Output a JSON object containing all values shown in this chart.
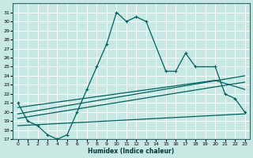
{
  "xlabel": "Humidex (Indice chaleur)",
  "bg_color": "#c8e8e4",
  "grid_color": "#ffffff",
  "line_color": "#006060",
  "xlim": [
    -0.5,
    23.5
  ],
  "ylim": [
    17,
    32
  ],
  "xticks": [
    0,
    1,
    2,
    3,
    4,
    5,
    6,
    7,
    8,
    9,
    10,
    11,
    12,
    13,
    14,
    15,
    16,
    17,
    18,
    19,
    20,
    21,
    22,
    23
  ],
  "yticks": [
    17,
    18,
    19,
    20,
    21,
    22,
    23,
    24,
    25,
    26,
    27,
    28,
    29,
    30,
    31
  ],
  "line1_x": [
    0,
    1,
    2,
    3,
    4,
    5,
    6,
    7,
    8,
    9,
    10,
    11,
    12,
    13,
    15,
    16,
    17,
    18,
    20,
    21,
    22,
    23
  ],
  "line1_y": [
    21,
    19,
    18.5,
    17.5,
    17,
    17.5,
    20,
    22.5,
    25,
    27.5,
    31,
    30,
    30.5,
    30,
    24.5,
    24.5,
    26.5,
    25,
    25,
    22,
    21.5,
    20
  ],
  "line2_x": [
    0,
    23
  ],
  "line2_y": [
    19.8,
    24.0
  ],
  "line3_x": [
    0,
    23
  ],
  "line3_y": [
    19.3,
    23.3
  ],
  "line4_x": [
    0,
    23
  ],
  "line4_y": [
    18.5,
    19.8
  ],
  "line5_x": [
    0,
    20,
    23
  ],
  "line5_y": [
    20.5,
    23.5,
    22.5
  ]
}
